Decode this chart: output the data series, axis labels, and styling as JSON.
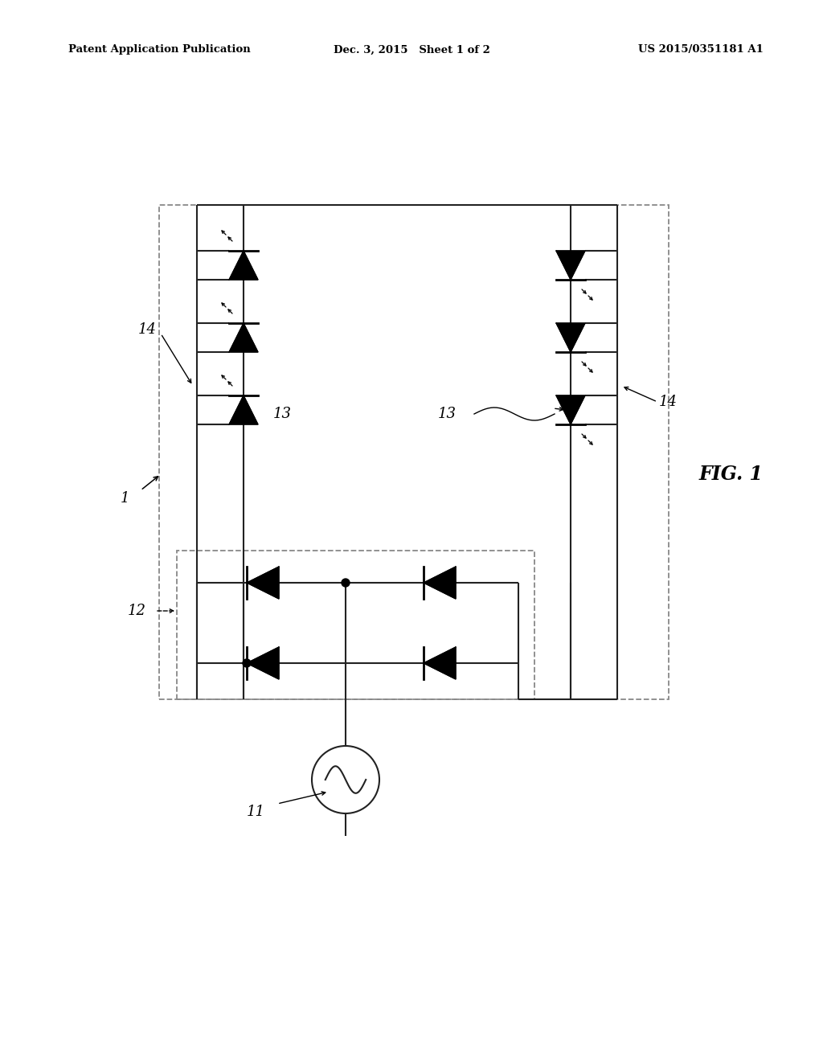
{
  "header_left": "Patent Application Publication",
  "header_mid": "Dec. 3, 2015   Sheet 1 of 2",
  "header_right": "US 2015/0351181 A1",
  "fig_label": "FIG. 1",
  "bg_color": "#ffffff",
  "line_color": "#222222",
  "label_1": "1",
  "label_11": "11",
  "label_12": "12",
  "label_13": "13",
  "label_14": "14"
}
